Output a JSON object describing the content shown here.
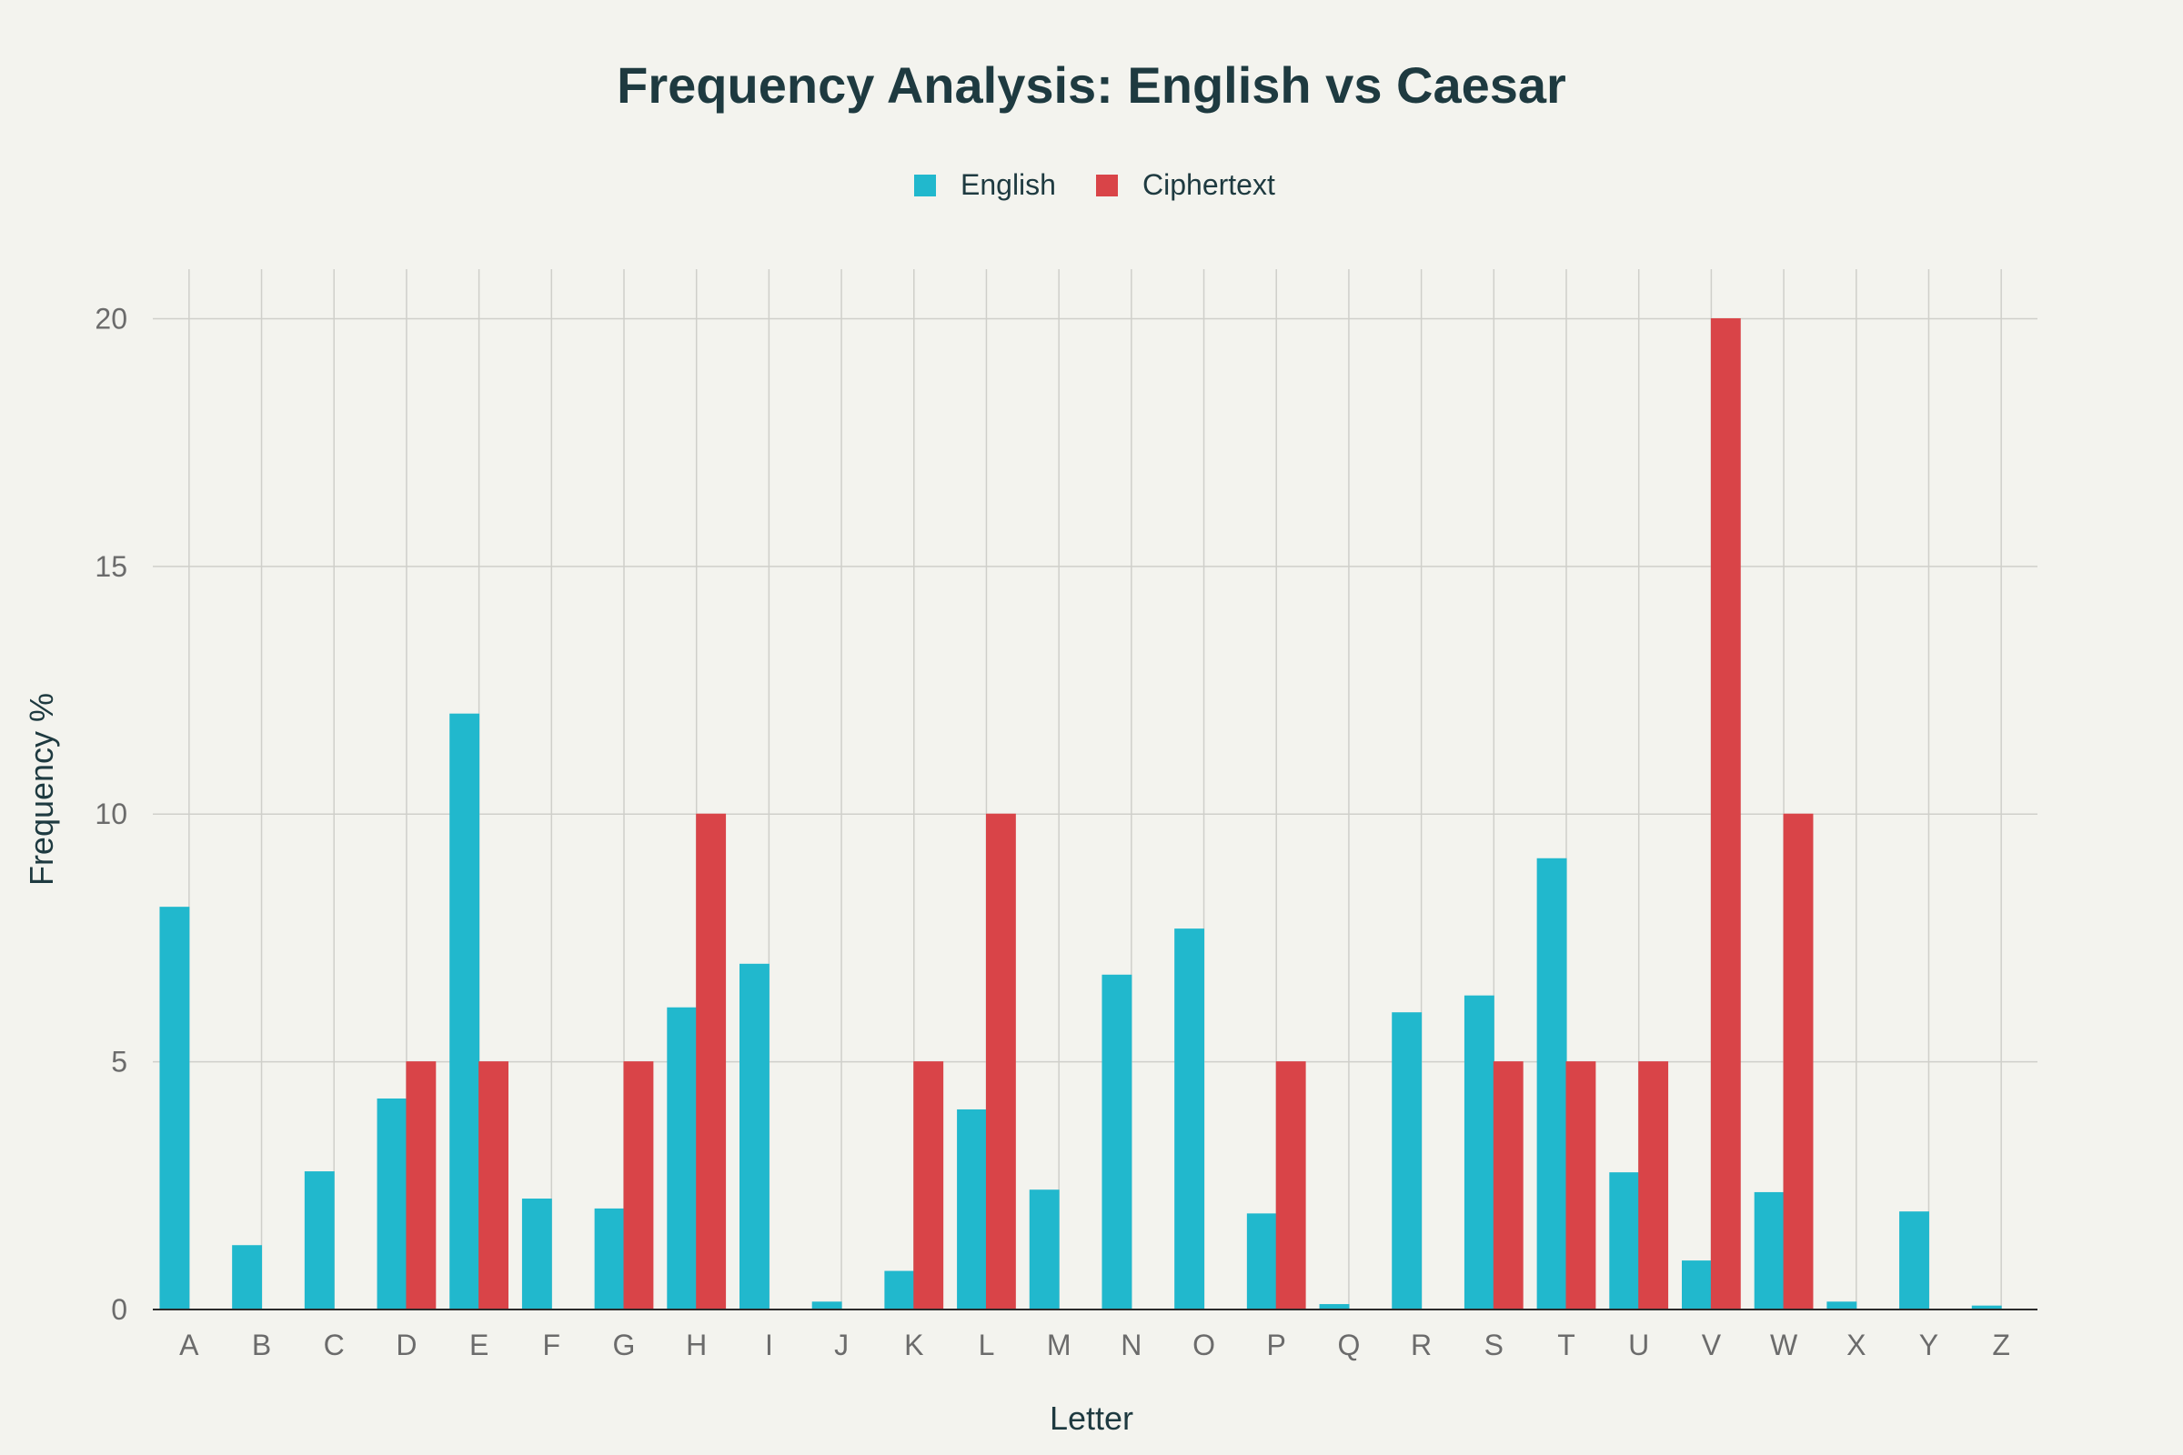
{
  "chart_data": {
    "type": "bar",
    "title": "Frequency Analysis: English vs Caesar",
    "xlabel": "Letter",
    "ylabel": "Frequency %",
    "categories": [
      "A",
      "B",
      "C",
      "D",
      "E",
      "F",
      "G",
      "H",
      "I",
      "J",
      "K",
      "L",
      "M",
      "N",
      "O",
      "P",
      "Q",
      "R",
      "S",
      "T",
      "U",
      "V",
      "W",
      "X",
      "Y",
      "Z"
    ],
    "yticks": [
      0,
      5,
      10,
      15,
      20
    ],
    "ylim": [
      0,
      21
    ],
    "grid": true,
    "legend_position": "top-center",
    "series": [
      {
        "name": "English",
        "color": "#21b8cd",
        "values": [
          8.12,
          1.29,
          2.78,
          4.25,
          12.02,
          2.23,
          2.03,
          6.09,
          6.97,
          0.15,
          0.77,
          4.03,
          2.41,
          6.75,
          7.68,
          1.93,
          0.1,
          5.99,
          6.33,
          9.1,
          2.76,
          0.98,
          2.36,
          0.15,
          1.97,
          0.07
        ]
      },
      {
        "name": "Ciphertext",
        "color": "#d94448",
        "values": [
          0,
          0,
          0,
          5,
          5,
          0,
          5,
          10,
          0,
          0,
          5,
          10,
          0,
          0,
          0,
          5,
          0,
          0,
          5,
          5,
          5,
          20,
          10,
          0,
          0,
          0
        ]
      }
    ]
  }
}
